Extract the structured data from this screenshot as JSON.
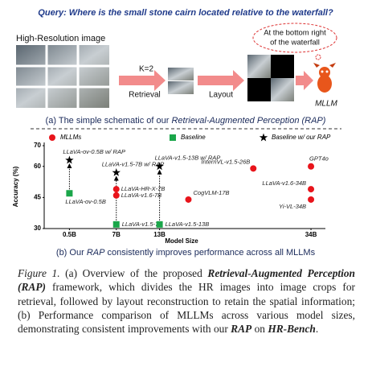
{
  "figure_a": {
    "query": "Query: Where is the small stone cairn located relative to the waterfall?",
    "image_label": "High-Resolution image",
    "k_label": "K=2",
    "retrieval_label": "Retrieval",
    "layout_label": "Layout",
    "answer_lines": [
      "At the bottom right",
      "of the waterfall"
    ],
    "mllm_label": "MLLM",
    "caption": [
      "(a)  The simple schematic of our ",
      "Retrieval-Augmented Perception (RAP)"
    ]
  },
  "chart_data": {
    "type": "scatter",
    "y_label": "Accuracy (%)",
    "x_label": "Model Size",
    "ylim": [
      30,
      70
    ],
    "yticks": [
      30,
      45,
      60,
      70
    ],
    "xlim": [
      -3,
      36
    ],
    "xticks": [
      {
        "value": 0.5,
        "label": "0.5B"
      },
      {
        "value": 7,
        "label": "7B"
      },
      {
        "value": 13,
        "label": "13B"
      },
      {
        "value": 34,
        "label": "34B"
      }
    ],
    "series": [
      {
        "name": "MLLMs",
        "color": "#e8141b",
        "marker": "circle",
        "labels": [
          "LLaVA-HR-X-7B",
          "LLaVA-v1.6-7B",
          "InternVL-v1.5-26B",
          "GPT4o",
          "CogVLM-17B",
          "LLaVA-v1.6-34B",
          "Yi-VL-34B"
        ],
        "x": [
          7,
          7,
          26,
          34,
          17,
          34,
          34
        ],
        "values": [
          49,
          46,
          59,
          60,
          44,
          49,
          44
        ]
      },
      {
        "name": "Baseline",
        "color": "#1aa64a",
        "marker": "square",
        "labels": [
          "LLaVA-ov-0.5B",
          "LLaVA-v1.5-7B",
          "LLaVA-v1.5-13B"
        ],
        "x": [
          0.5,
          7,
          13
        ],
        "values": [
          47,
          32,
          32
        ]
      },
      {
        "name": "Baseline w/ our RAP",
        "color": "#000000",
        "marker": "star",
        "labels": [
          "LLaVA-ov-0.5B w/ RAP",
          "LLaVA-v1.5-7B w/ RAP",
          "LLaVA-v1.5-13B w/ RAP"
        ],
        "x": [
          0.5,
          7,
          13
        ],
        "values": [
          63,
          57,
          60
        ]
      }
    ],
    "caption": [
      "(b)  Our ",
      "RAP",
      " consistently improves performance across all MLLMs"
    ]
  },
  "figure_caption": [
    "Figure 1.",
    " (a) Overview of the proposed ",
    "Retrieval-Augmented Perception (RAP)",
    " framework, which divides the HR images into image crops for retrieval, followed by layout reconstruction to retain the spatial information; (b) Performance comparison of MLLMs across various model sizes, demonstrating consistent improvements with our ",
    "RAP",
    " on ",
    "HR-Bench",
    "."
  ]
}
